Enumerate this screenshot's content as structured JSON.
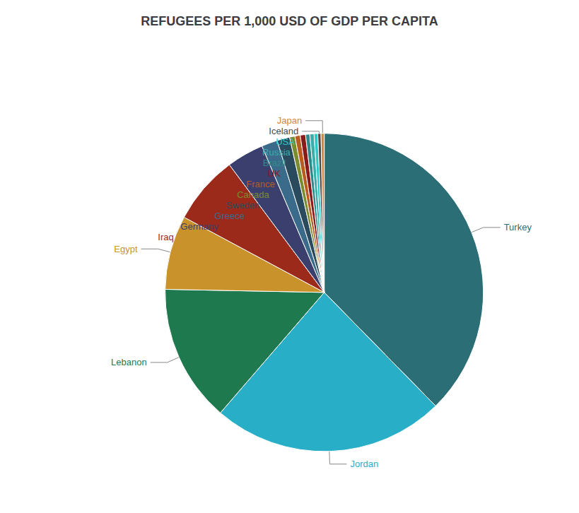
{
  "chart_data": {
    "type": "pie",
    "title": "REFUGEES PER 1,000 USD OF GDP PER CAPITA",
    "categories": [
      "Turkey",
      "Jordan",
      "Lebanon",
      "Egypt",
      "Iraq",
      "Germany",
      "Greece",
      "Sweden",
      "Canada",
      "France",
      "UK",
      "Brazil",
      "Russia",
      "USA",
      "Iceland",
      "Japan"
    ],
    "values": [
      35.0,
      22.0,
      13.0,
      7.0,
      6.5,
      3.5,
      1.5,
      1.2,
      0.5,
      0.5,
      0.5,
      0.4,
      0.4,
      0.35,
      0.3,
      0.3
    ],
    "colors": [
      "#2b6e76",
      "#29aec7",
      "#1e7a4e",
      "#c9922a",
      "#9b2a1a",
      "#3b3f6e",
      "#3b6b8a",
      "#2a4a5e",
      "#7a8c2e",
      "#b85c20",
      "#8b1a1a",
      "#2e8b8b",
      "#3aadad",
      "#2ec8c8",
      "#4a4a4a",
      "#d4873c"
    ]
  }
}
